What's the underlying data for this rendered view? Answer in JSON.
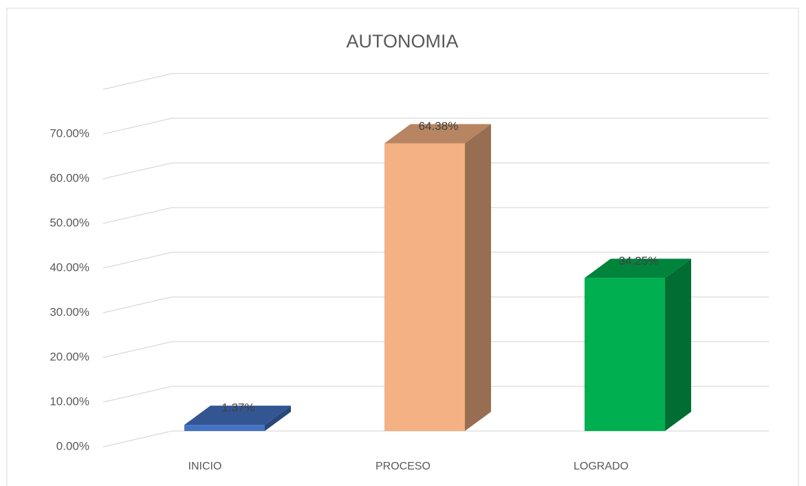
{
  "chart_data": {
    "type": "bar3d",
    "title": "AUTONOMIA",
    "categories": [
      "INICIO",
      "PROCESO",
      "LOGRADO"
    ],
    "values": [
      1.37,
      64.38,
      34.25
    ],
    "value_labels": [
      "1.37%",
      "64.38%",
      "34.25%"
    ],
    "colors": [
      "#4472c4",
      "#f4b183",
      "#00b050"
    ],
    "ylim": [
      0,
      80
    ],
    "yticks": [
      {
        "value": 0,
        "label": "0.00%"
      },
      {
        "value": 10,
        "label": "10.00%"
      },
      {
        "value": 20,
        "label": "20.00%"
      },
      {
        "value": 30,
        "label": "30.00%"
      },
      {
        "value": 40,
        "label": "40.00%"
      },
      {
        "value": 50,
        "label": "50.00%"
      },
      {
        "value": 60,
        "label": "60.00%"
      },
      {
        "value": 70,
        "label": "70.00%"
      }
    ],
    "grid": true
  }
}
